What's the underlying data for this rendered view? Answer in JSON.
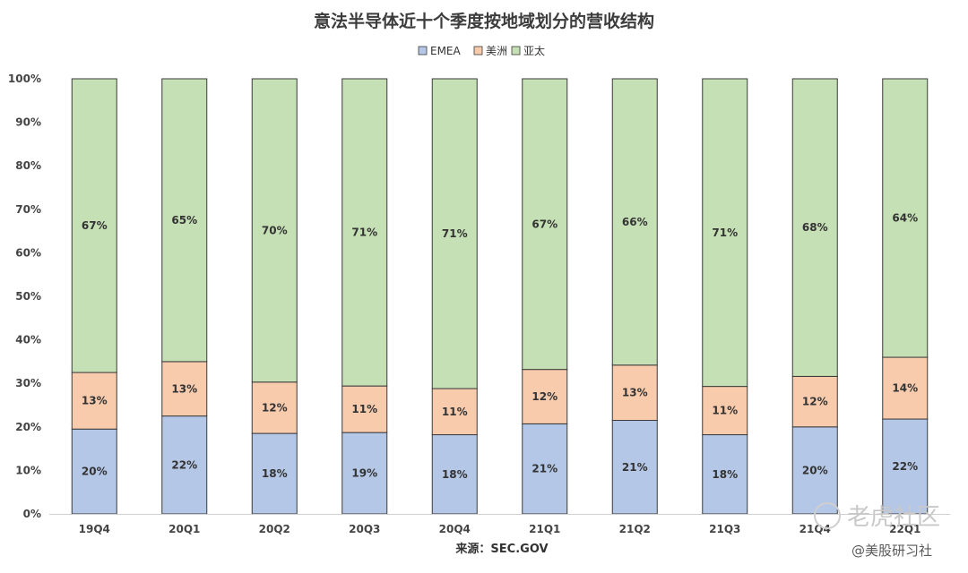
{
  "chart_data": {
    "type": "bar",
    "stacked": true,
    "title": "意法半导体近十个季度按地域划分的营收结构",
    "xlabel": "",
    "ylabel": "",
    "categories": [
      "19Q4",
      "20Q1",
      "20Q2",
      "20Q3",
      "20Q4",
      "21Q1",
      "21Q2",
      "21Q3",
      "21Q4",
      "22Q1"
    ],
    "series": [
      {
        "name": "EMEA",
        "color": "#b4c7e7",
        "values": [
          19.5,
          22.5,
          18.5,
          18.7,
          18.2,
          20.7,
          21.5,
          18.2,
          20.0,
          21.8
        ],
        "labels": [
          "20%",
          "22%",
          "18%",
          "19%",
          "18%",
          "21%",
          "21%",
          "18%",
          "20%",
          "22%"
        ]
      },
      {
        "name": "美洲",
        "color": "#f8cbad",
        "values": [
          13.0,
          12.5,
          11.8,
          10.7,
          10.6,
          12.5,
          12.7,
          11.1,
          11.6,
          14.2
        ],
        "labels": [
          "13%",
          "13%",
          "12%",
          "11%",
          "11%",
          "12%",
          "13%",
          "11%",
          "12%",
          "14%"
        ]
      },
      {
        "name": "亚太",
        "color": "#c5e0b4",
        "values": [
          67.5,
          65.0,
          69.7,
          70.6,
          71.2,
          66.8,
          65.8,
          70.7,
          68.4,
          64.0
        ],
        "labels": [
          "67%",
          "65%",
          "70%",
          "71%",
          "71%",
          "67%",
          "66%",
          "71%",
          "68%",
          "64%"
        ]
      }
    ],
    "y_ticks": [
      "0%",
      "10%",
      "20%",
      "30%",
      "40%",
      "50%",
      "60%",
      "70%",
      "80%",
      "90%",
      "100%"
    ],
    "ylim": [
      0,
      100
    ],
    "grid": false,
    "legend_position": "top-center"
  },
  "source": "来源：SEC.GOV",
  "watermark": {
    "main": "老虎社区",
    "sub": "@美股研习社"
  }
}
